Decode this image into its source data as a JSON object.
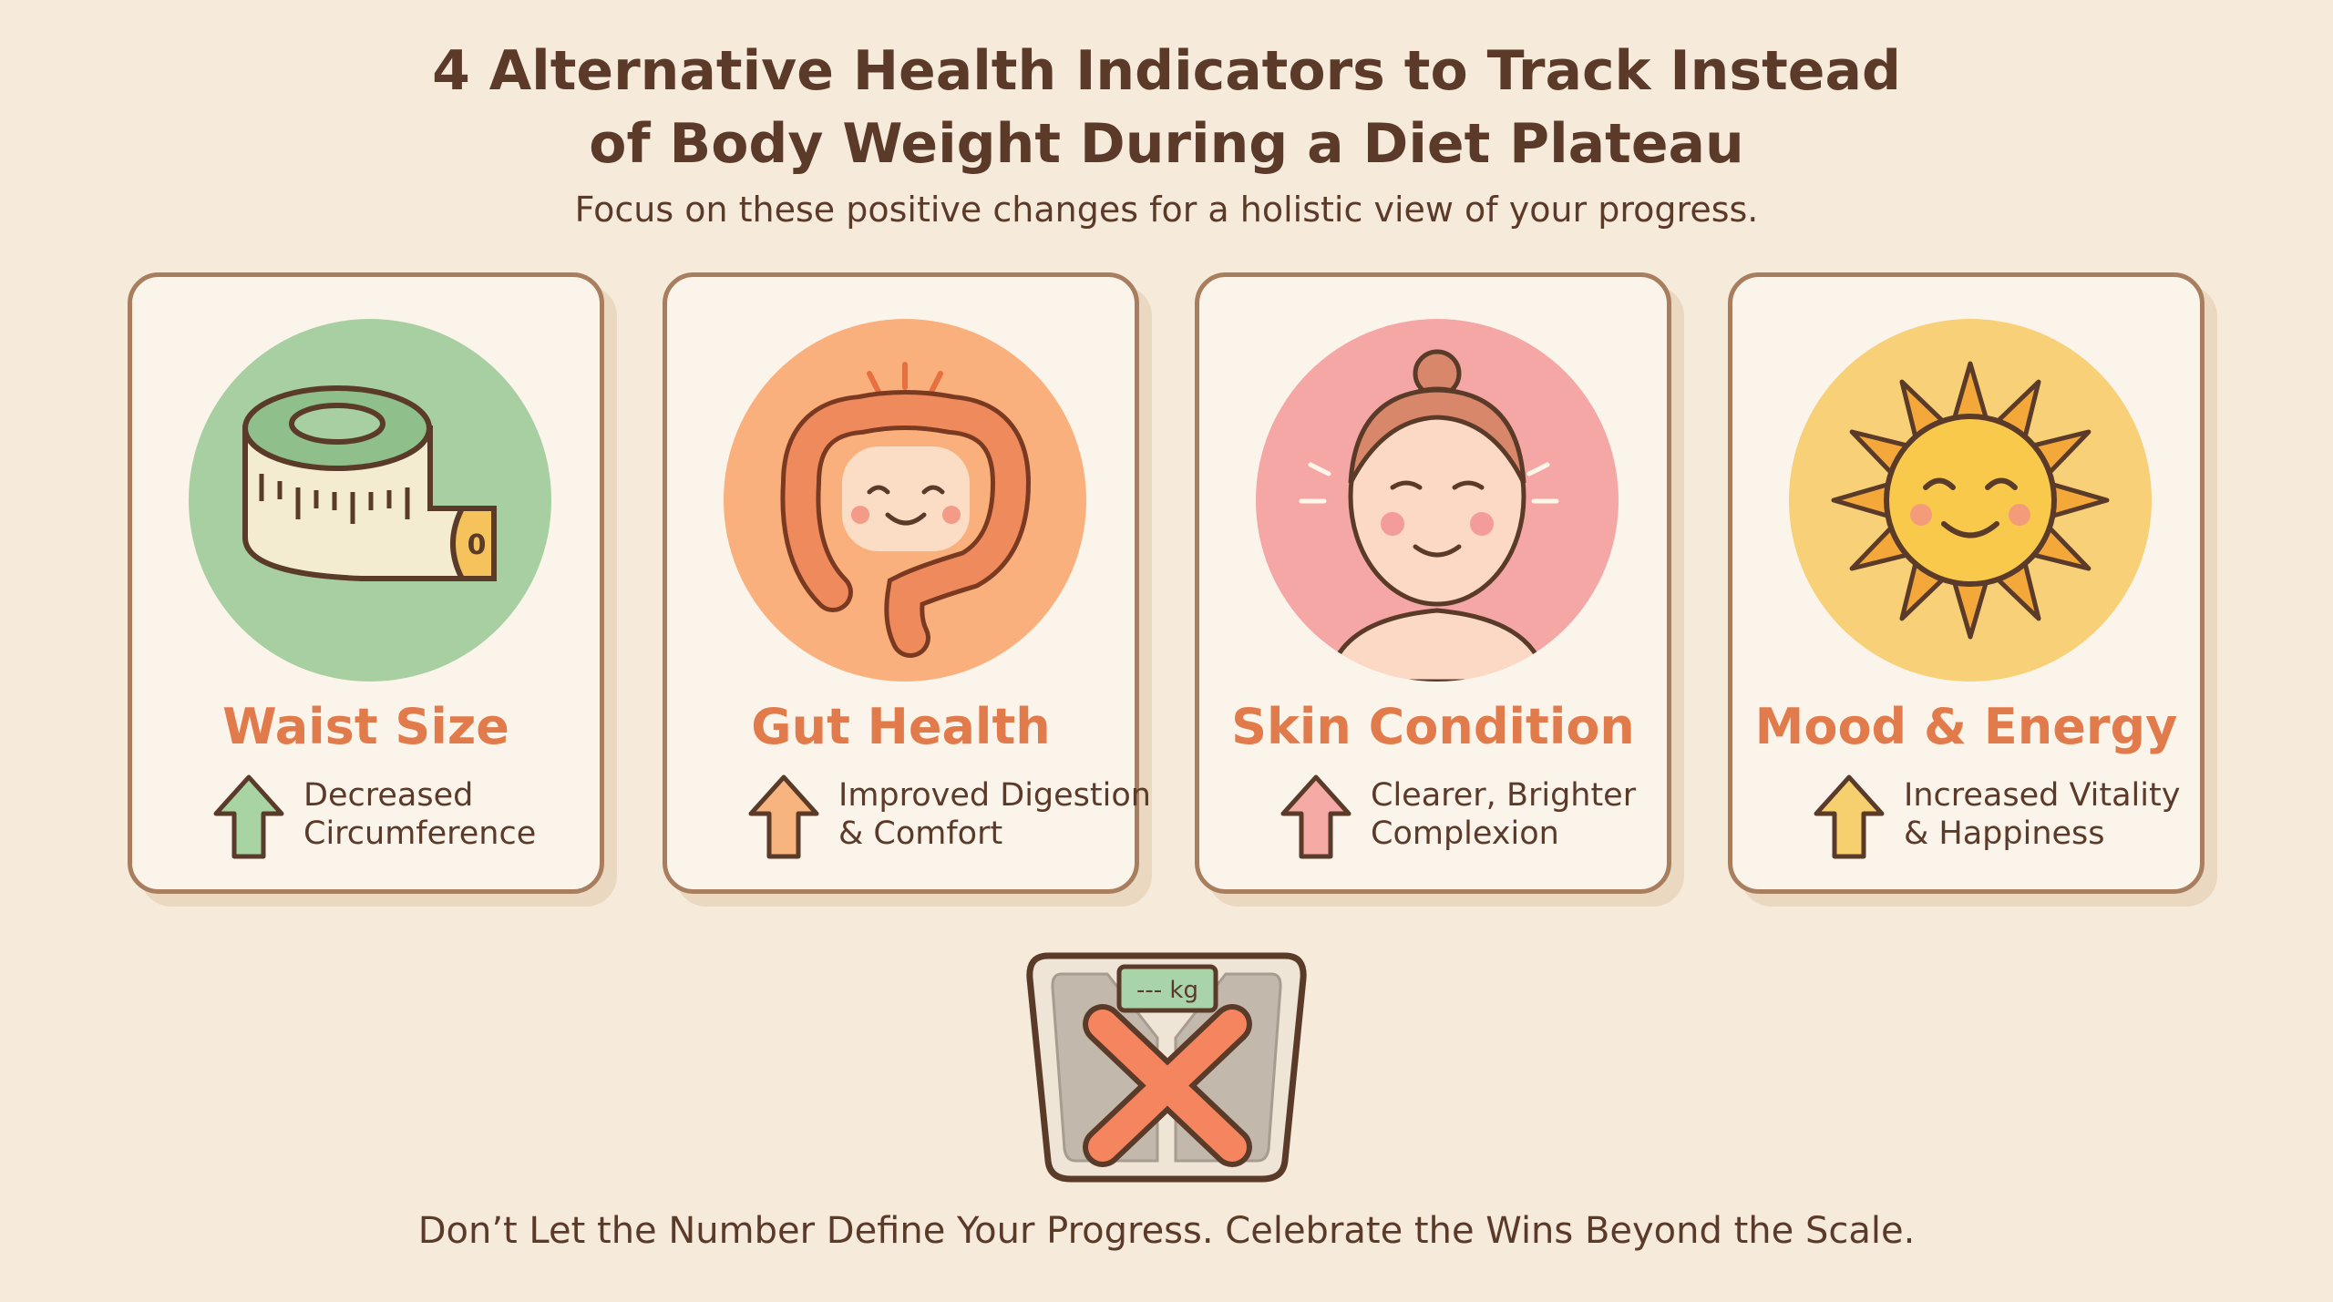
{
  "header": {
    "title_line1": "4 Alternative Health Indicators to Track Instead",
    "title_line2": "of Body Weight During a Diet Plateau",
    "subtitle": "Focus on these positive changes for a holistic view of your progress."
  },
  "cards": [
    {
      "title": "Waist Size",
      "desc_line1": "Decreased",
      "desc_line2": "Circumference",
      "icon": "measuring-tape-icon",
      "color": "#a8cfa2",
      "arrow_color": "#a8d4a4"
    },
    {
      "title": "Gut Health",
      "desc_line1": "Improved Digestion",
      "desc_line2": "& Comfort",
      "icon": "intestine-icon",
      "color": "#f9b07c",
      "arrow_color": "#f8b47e"
    },
    {
      "title": "Skin Condition",
      "desc_line1": "Clearer, Brighter",
      "desc_line2": "Complexion",
      "icon": "face-icon",
      "color": "#f4a7a5",
      "arrow_color": "#f6aaa6"
    },
    {
      "title": "Mood & Energy",
      "desc_line1": "Increased Vitality",
      "desc_line2": "& Happiness",
      "icon": "sun-icon",
      "color": "#f7d077",
      "arrow_color": "#f6cf6f"
    }
  ],
  "scale": {
    "display": "--- kg",
    "icon": "crossed-out-scale-icon"
  },
  "footer": "Don’t Let the Number Define Your Progress. Celebrate the Wins Beyond the Scale."
}
